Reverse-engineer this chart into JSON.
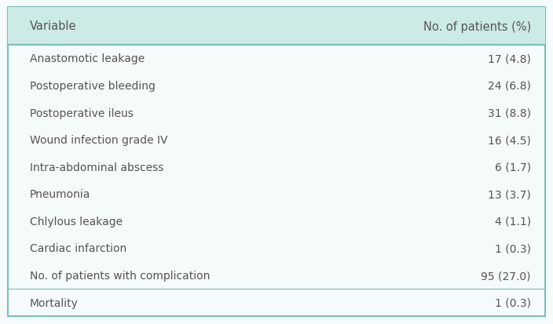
{
  "header": [
    "Variable",
    "No. of patients (%)"
  ],
  "rows": [
    [
      "Anastomotic leakage",
      "17 (4.8)"
    ],
    [
      "Postoperative bleeding",
      "24 (6.8)"
    ],
    [
      "Postoperative ileus",
      "31 (8.8)"
    ],
    [
      "Wound infection grade IV",
      "16 (4.5)"
    ],
    [
      "Intra-abdominal abscess",
      "6 (1.7)"
    ],
    [
      "Pneumonia",
      "13 (3.7)"
    ],
    [
      "Chlylous leakage",
      "4 (1.1)"
    ],
    [
      "Cardiac infarction",
      "1 (0.3)"
    ],
    [
      "No. of patients with complication",
      "95 (27.0)"
    ],
    [
      "Mortality",
      "1 (0.3)"
    ]
  ],
  "header_bg": "#cceae6",
  "table_bg": "#f5fafa",
  "outer_border_color": "#7bbfba",
  "text_color": "#555555",
  "header_text_color": "#555555",
  "font_size": 10.0,
  "header_font_size": 10.5,
  "figsize": [
    7.04,
    4.14
  ],
  "dpi": 100
}
